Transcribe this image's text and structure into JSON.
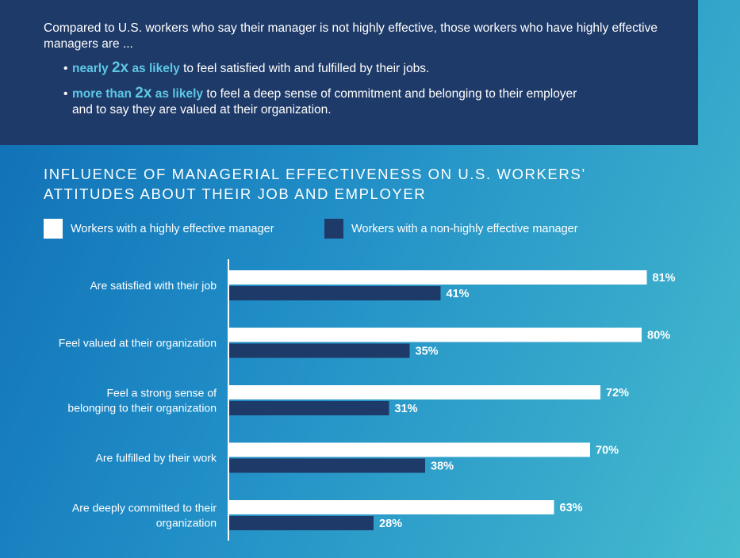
{
  "callout": {
    "intro": "Compared to U.S. workers who say their manager is not highly effective, those workers who have highly effective managers are ...",
    "bullet1": {
      "dot": "•",
      "hl_prefix": "nearly",
      "hl_big": "2x",
      "hl_suffix": "as likely",
      "rest": "to feel satisfied with and fulfilled by their jobs."
    },
    "bullet2": {
      "dot": "•",
      "hl_prefix": "more than",
      "hl_big": "2x",
      "hl_suffix": "as likely",
      "rest": "to feel a deep sense of commitment and belonging to their employer",
      "rest_line2": "and to say they are valued at their organization."
    }
  },
  "colors": {
    "callout_bg": "#1e3a68",
    "highlight": "#5ec7e6",
    "series_a": "#ffffff",
    "series_b": "#1e3a68",
    "axis": "#ffffff"
  },
  "chart_data": {
    "type": "bar",
    "orientation": "horizontal",
    "title_line1": "INFLUENCE OF MANAGERIAL EFFECTIVENESS ON U.S. WORKERS’",
    "title_line2": "ATTITUDES ABOUT THEIR JOB AND EMPLOYER",
    "legend_position": "top-left",
    "grid": false,
    "xlim": [
      0,
      100
    ],
    "categories": [
      [
        "Are satisfied with their job"
      ],
      [
        "Feel valued at their organization"
      ],
      [
        "Feel a strong sense of",
        "belonging to their organization"
      ],
      [
        "Are fulfilled by their work"
      ],
      [
        "Are deeply committed to their",
        "organization"
      ]
    ],
    "series": [
      {
        "name": "Workers with a highly effective manager",
        "values": [
          81,
          80,
          72,
          70,
          63
        ]
      },
      {
        "name": "Workers with a non-highly effective manager",
        "values": [
          41,
          35,
          31,
          38,
          28
        ]
      }
    ],
    "value_suffix": "%"
  }
}
